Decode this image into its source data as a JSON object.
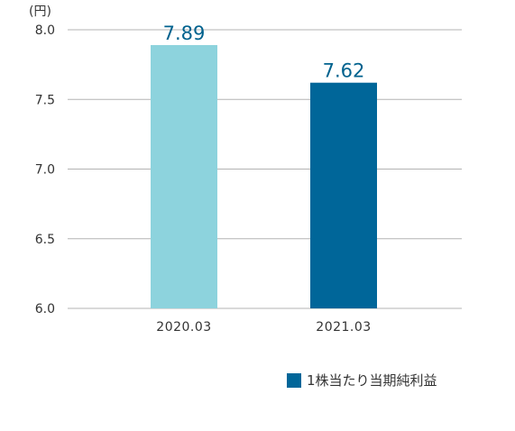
{
  "chart_data": {
    "type": "bar",
    "unit_label": "(円)",
    "categories": [
      "2020.03",
      "2021.03"
    ],
    "values": [
      7.89,
      7.62
    ],
    "value_labels": [
      "7.89",
      "7.62"
    ],
    "bar_colors": [
      "#8dd3dd",
      "#006699"
    ],
    "value_label_color": "#00628e",
    "ylim": [
      6.0,
      8.0
    ],
    "yticks": [
      "6.0",
      "6.5",
      "7.0",
      "7.5",
      "8.0"
    ],
    "ytick_values": [
      6.0,
      6.5,
      7.0,
      7.5,
      8.0
    ],
    "grid": true,
    "legend_position": "bottom-right",
    "legend": [
      {
        "label": "1株当たり当期純利益",
        "color": "#006699"
      }
    ]
  }
}
